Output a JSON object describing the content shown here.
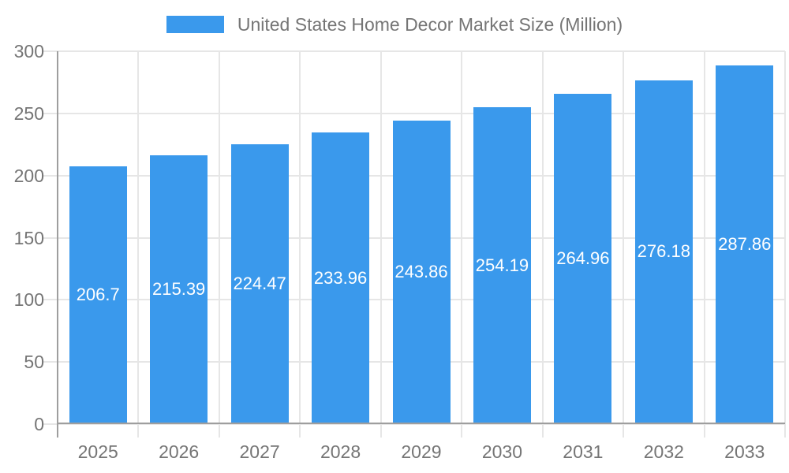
{
  "legend": {
    "label": "United States Home Decor Market Size (Million)"
  },
  "chart_data": {
    "type": "bar",
    "title": "United States Home Decor Market Size (Million)",
    "categories": [
      "2025",
      "2026",
      "2027",
      "2028",
      "2029",
      "2030",
      "2031",
      "2032",
      "2033"
    ],
    "series": [
      {
        "name": "United States Home Decor Market Size (Million)",
        "values": [
          206.7,
          215.39,
          224.47,
          233.96,
          243.86,
          254.19,
          264.96,
          276.18,
          287.86
        ]
      }
    ],
    "value_labels": [
      "206.7",
      "215.39",
      "224.47",
      "233.96",
      "243.86",
      "254.19",
      "264.96",
      "276.18",
      "287.86"
    ],
    "xlabel": "",
    "ylabel": "",
    "ylim": [
      0,
      300
    ],
    "y_ticks": [
      0,
      50,
      100,
      150,
      200,
      250,
      300
    ],
    "grid": true,
    "legend_position": "top",
    "value_label_position": "inside-center",
    "colors": {
      "bar": "#3A99EC",
      "axis": "#9E9E9E",
      "grid": "#E6E6E6",
      "text": "#757575",
      "value_label": "#FFFFFF",
      "background": "#FFFFFF"
    }
  }
}
